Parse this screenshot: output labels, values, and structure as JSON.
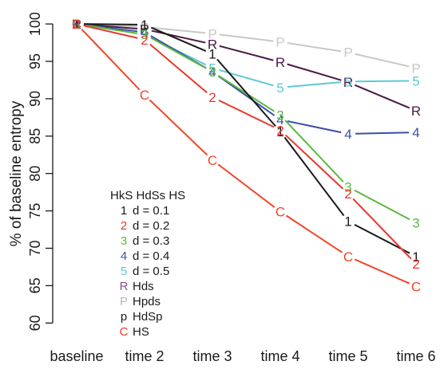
{
  "chart_data": {
    "type": "line",
    "ylabel": "% of baseline entropy",
    "xlabel": "",
    "categories": [
      "baseline",
      "time 2",
      "time 3",
      "time 4",
      "time 5",
      "time 6"
    ],
    "ylim": [
      59.5,
      101.5
    ],
    "yticks": [
      60,
      65,
      70,
      75,
      80,
      85,
      90,
      95,
      100
    ],
    "grid": false,
    "legend": {
      "placement": "lower-left",
      "header": "HkS HdSs HS",
      "entries": [
        {
          "marker": "1",
          "label": "d = 0.1",
          "color": "#1a1a1a"
        },
        {
          "marker": "2",
          "label": "d = 0.2",
          "color": "#e8382c"
        },
        {
          "marker": "3",
          "label": "d = 0.3",
          "color": "#5cb840"
        },
        {
          "marker": "4",
          "label": "d = 0.4",
          "color": "#3b4fa8"
        },
        {
          "marker": "5",
          "label": "d = 0.5",
          "color": "#5ec8d6"
        },
        {
          "marker": "R",
          "label": "Hds",
          "color": "#8b4f93"
        },
        {
          "marker": "P",
          "label": "Hpds",
          "color": "#b8b8b8"
        },
        {
          "marker": "p",
          "label": "HdSp",
          "color": "#1a1a1a"
        },
        {
          "marker": "C",
          "label": "HS",
          "color": "#e8382c"
        }
      ]
    },
    "series": [
      {
        "marker": "P",
        "color": "#c8c8c8",
        "values": [
          100,
          99.6,
          98.7,
          97.6,
          96.2,
          94.1
        ]
      },
      {
        "marker": "R",
        "color": "#4a1942",
        "values": [
          100,
          99.3,
          97.3,
          94.9,
          92.2,
          88.4
        ]
      },
      {
        "marker": "5",
        "color": "#5ec8d6",
        "values": [
          100,
          98.6,
          94.1,
          91.5,
          92.3,
          92.4
        ]
      },
      {
        "marker": "4",
        "color": "#3b4fa8",
        "values": [
          100,
          98.9,
          93.6,
          87.2,
          85.3,
          85.5
        ]
      },
      {
        "marker": "3",
        "color": "#5cb840",
        "values": [
          100,
          98.6,
          93.6,
          87.8,
          78.2,
          73.4
        ]
      },
      {
        "marker": "1",
        "color": "#1a1a1a",
        "values": [
          100,
          99.9,
          96.0,
          85.6,
          73.6,
          68.9
        ]
      },
      {
        "marker": "2",
        "color": "#e8382c",
        "values": [
          100,
          97.9,
          90.2,
          85.8,
          77.3,
          67.9
        ]
      },
      {
        "marker": "C",
        "color": "#f04628",
        "values": [
          100,
          90.5,
          81.8,
          74.9,
          68.9,
          64.9
        ]
      }
    ]
  }
}
